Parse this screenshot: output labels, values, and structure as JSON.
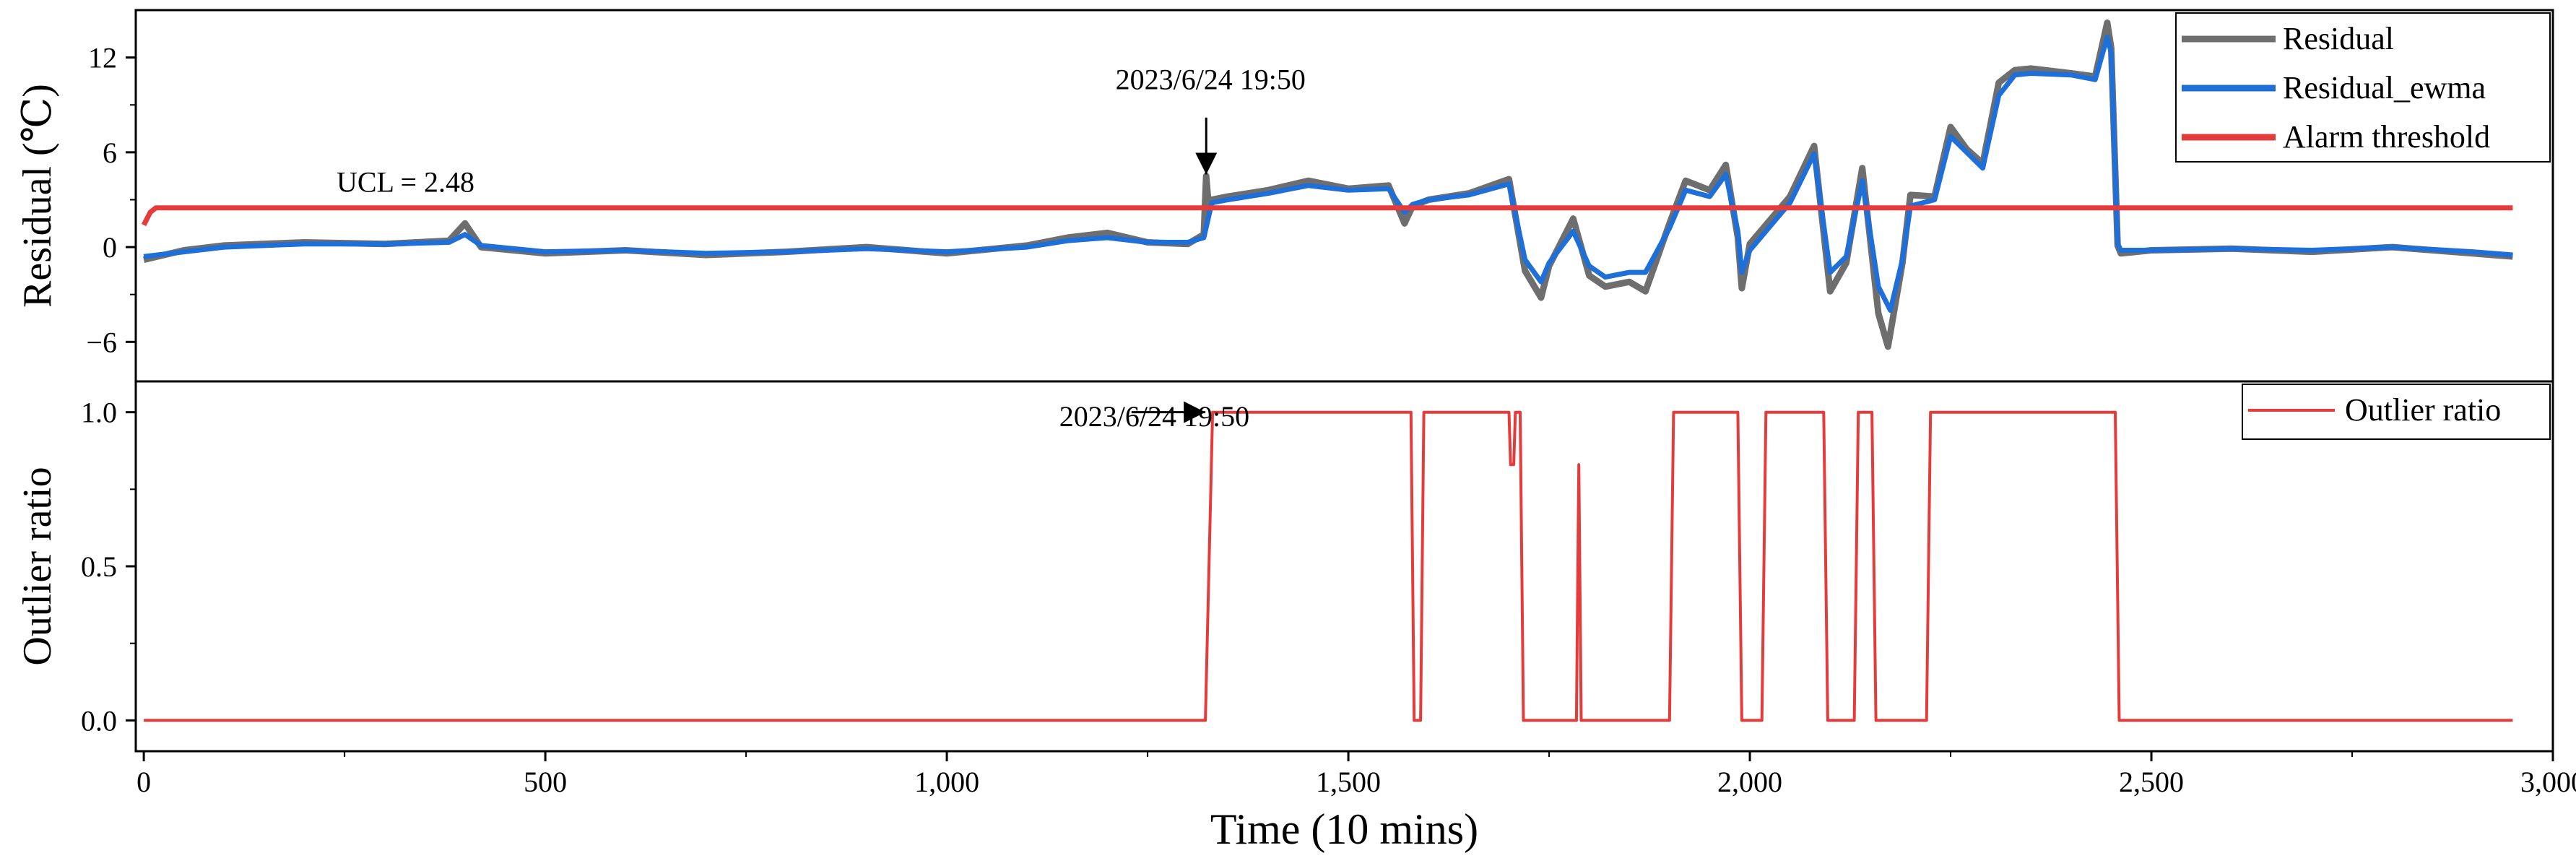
{
  "chart_data": [
    {
      "type": "line",
      "panel": "top",
      "ylabel": "Residual (℃)",
      "ylim": [
        -8.5,
        15
      ],
      "yticks": [
        -6,
        0,
        6,
        12
      ],
      "ytick_labels": [
        "−6",
        "0",
        "6",
        "12"
      ],
      "xlim": [
        -10,
        3000
      ],
      "series": [
        {
          "name": "Residual",
          "color": "#6e6e6e",
          "x": [
            0,
            50,
            100,
            200,
            300,
            380,
            400,
            420,
            500,
            600,
            700,
            800,
            900,
            1000,
            1100,
            1150,
            1200,
            1250,
            1300,
            1320,
            1323,
            1326,
            1330,
            1350,
            1400,
            1450,
            1500,
            1550,
            1570,
            1580,
            1600,
            1650,
            1700,
            1720,
            1740,
            1750,
            1780,
            1800,
            1820,
            1850,
            1870,
            1900,
            1920,
            1950,
            1970,
            1985,
            1990,
            2000,
            2050,
            2080,
            2100,
            2120,
            2140,
            2160,
            2172,
            2190,
            2200,
            2230,
            2250,
            2270,
            2290,
            2310,
            2330,
            2350,
            2400,
            2430,
            2445,
            2450,
            2458,
            2462,
            2500,
            2600,
            2700,
            2800,
            2900,
            2950
          ],
          "y": [
            -0.8,
            -0.2,
            0.1,
            0.3,
            0.2,
            0.4,
            1.5,
            0.0,
            -0.4,
            -0.2,
            -0.5,
            -0.3,
            0.0,
            -0.4,
            0.1,
            0.6,
            0.9,
            0.3,
            0.2,
            0.8,
            4.5,
            2.6,
            3.0,
            3.2,
            3.6,
            4.2,
            3.7,
            3.9,
            1.5,
            2.6,
            3.0,
            3.4,
            4.3,
            -1.5,
            -3.2,
            -1.2,
            1.8,
            -1.8,
            -2.5,
            -2.2,
            -2.8,
            1.5,
            4.2,
            3.6,
            5.2,
            0.6,
            -2.6,
            0.2,
            3.2,
            6.4,
            -2.8,
            -1.0,
            5.0,
            -4.2,
            -6.3,
            -1.0,
            3.3,
            3.2,
            7.6,
            6.2,
            5.3,
            10.4,
            11.2,
            11.3,
            11.0,
            10.8,
            14.2,
            12.6,
            0.1,
            -0.4,
            -0.2,
            -0.1,
            -0.3,
            0.0,
            -0.4,
            -0.6
          ]
        },
        {
          "name": "Residual_ewma",
          "color": "#1f6fd8",
          "x": [
            0,
            50,
            100,
            200,
            300,
            380,
            400,
            420,
            500,
            600,
            700,
            800,
            900,
            1000,
            1100,
            1150,
            1200,
            1250,
            1300,
            1320,
            1330,
            1350,
            1400,
            1450,
            1500,
            1550,
            1570,
            1580,
            1600,
            1650,
            1700,
            1720,
            1740,
            1750,
            1780,
            1800,
            1820,
            1850,
            1870,
            1900,
            1920,
            1950,
            1970,
            1985,
            1990,
            2000,
            2050,
            2080,
            2100,
            2120,
            2140,
            2160,
            2175,
            2190,
            2200,
            2230,
            2250,
            2270,
            2290,
            2310,
            2330,
            2350,
            2400,
            2430,
            2445,
            2450,
            2458,
            2462,
            2500,
            2600,
            2700,
            2800,
            2900,
            2950
          ],
          "y": [
            -0.6,
            -0.3,
            0.0,
            0.2,
            0.2,
            0.3,
            0.8,
            0.1,
            -0.3,
            -0.2,
            -0.4,
            -0.3,
            -0.1,
            -0.3,
            0.0,
            0.4,
            0.6,
            0.3,
            0.3,
            0.6,
            2.8,
            3.0,
            3.4,
            3.9,
            3.6,
            3.7,
            2.2,
            2.7,
            3.0,
            3.3,
            4.0,
            -0.8,
            -2.2,
            -1.0,
            1.0,
            -1.2,
            -1.9,
            -1.6,
            -1.6,
            1.2,
            3.6,
            3.2,
            4.6,
            1.0,
            -1.6,
            -0.2,
            2.8,
            5.9,
            -1.6,
            -0.6,
            4.2,
            -2.5,
            -4.0,
            -0.8,
            2.6,
            3.0,
            7.0,
            6.0,
            5.0,
            9.6,
            10.9,
            11.0,
            10.9,
            10.6,
            13.3,
            12.3,
            0.2,
            -0.2,
            -0.2,
            -0.1,
            -0.2,
            0.0,
            -0.3,
            -0.5
          ]
        },
        {
          "name": "Alarm threshold",
          "color": "#e63b3b",
          "x": [
            0,
            8,
            15,
            2950
          ],
          "y": [
            1.4,
            2.2,
            2.48,
            2.48
          ]
        }
      ],
      "annotations": [
        {
          "text": "UCL = 2.48",
          "x": 240,
          "y": 3.5
        },
        {
          "text": "2023/6/24 19:50",
          "x": 1210,
          "y": 10.0,
          "arrow_to": [
            1323,
            4.6
          ],
          "arrow_from": [
            1323,
            8.2
          ]
        }
      ]
    },
    {
      "type": "line",
      "panel": "bottom",
      "ylabel": "Outlier ratio",
      "xlabel": "Time (10 mins)",
      "xlim": [
        -10,
        3000
      ],
      "ylim": [
        -0.1,
        1.1
      ],
      "yticks": [
        0,
        0.5,
        1
      ],
      "ytick_labels": [
        "0.0",
        "0.5",
        "1.0"
      ],
      "xticks": [
        0,
        500,
        1000,
        1500,
        2000,
        2500,
        3000
      ],
      "xtick_labels": [
        "0",
        "500",
        "1,000",
        "1,500",
        "2,000",
        "2,500",
        "3,000"
      ],
      "series": [
        {
          "name": "Outlier ratio",
          "color": "#e63b3b",
          "x": [
            0,
            1322,
            1331,
            1578,
            1582,
            1590,
            1594,
            1700,
            1702,
            1706,
            1708,
            1714,
            1718,
            1784,
            1787,
            1790,
            1793,
            1796,
            1900,
            1905,
            1985,
            1990,
            2015,
            2020,
            2092,
            2097,
            2130,
            2135,
            2152,
            2157,
            2220,
            2225,
            2455,
            2460,
            2950
          ],
          "y": [
            0,
            0,
            1,
            1,
            0,
            0,
            1,
            1,
            0.83,
            0.83,
            1,
            1,
            0,
            0,
            0.83,
            0,
            0,
            0,
            0,
            1,
            1,
            0,
            0,
            1,
            1,
            0,
            0,
            1,
            1,
            0,
            0,
            1,
            1,
            0,
            0
          ]
        }
      ],
      "annotations": [
        {
          "text": "2023/6/24 19:50",
          "x": 1140,
          "y": 0.955,
          "arrow_to": [
            1322,
            1.0
          ],
          "arrow_from": [
            1230,
            1.0
          ]
        }
      ]
    }
  ]
}
